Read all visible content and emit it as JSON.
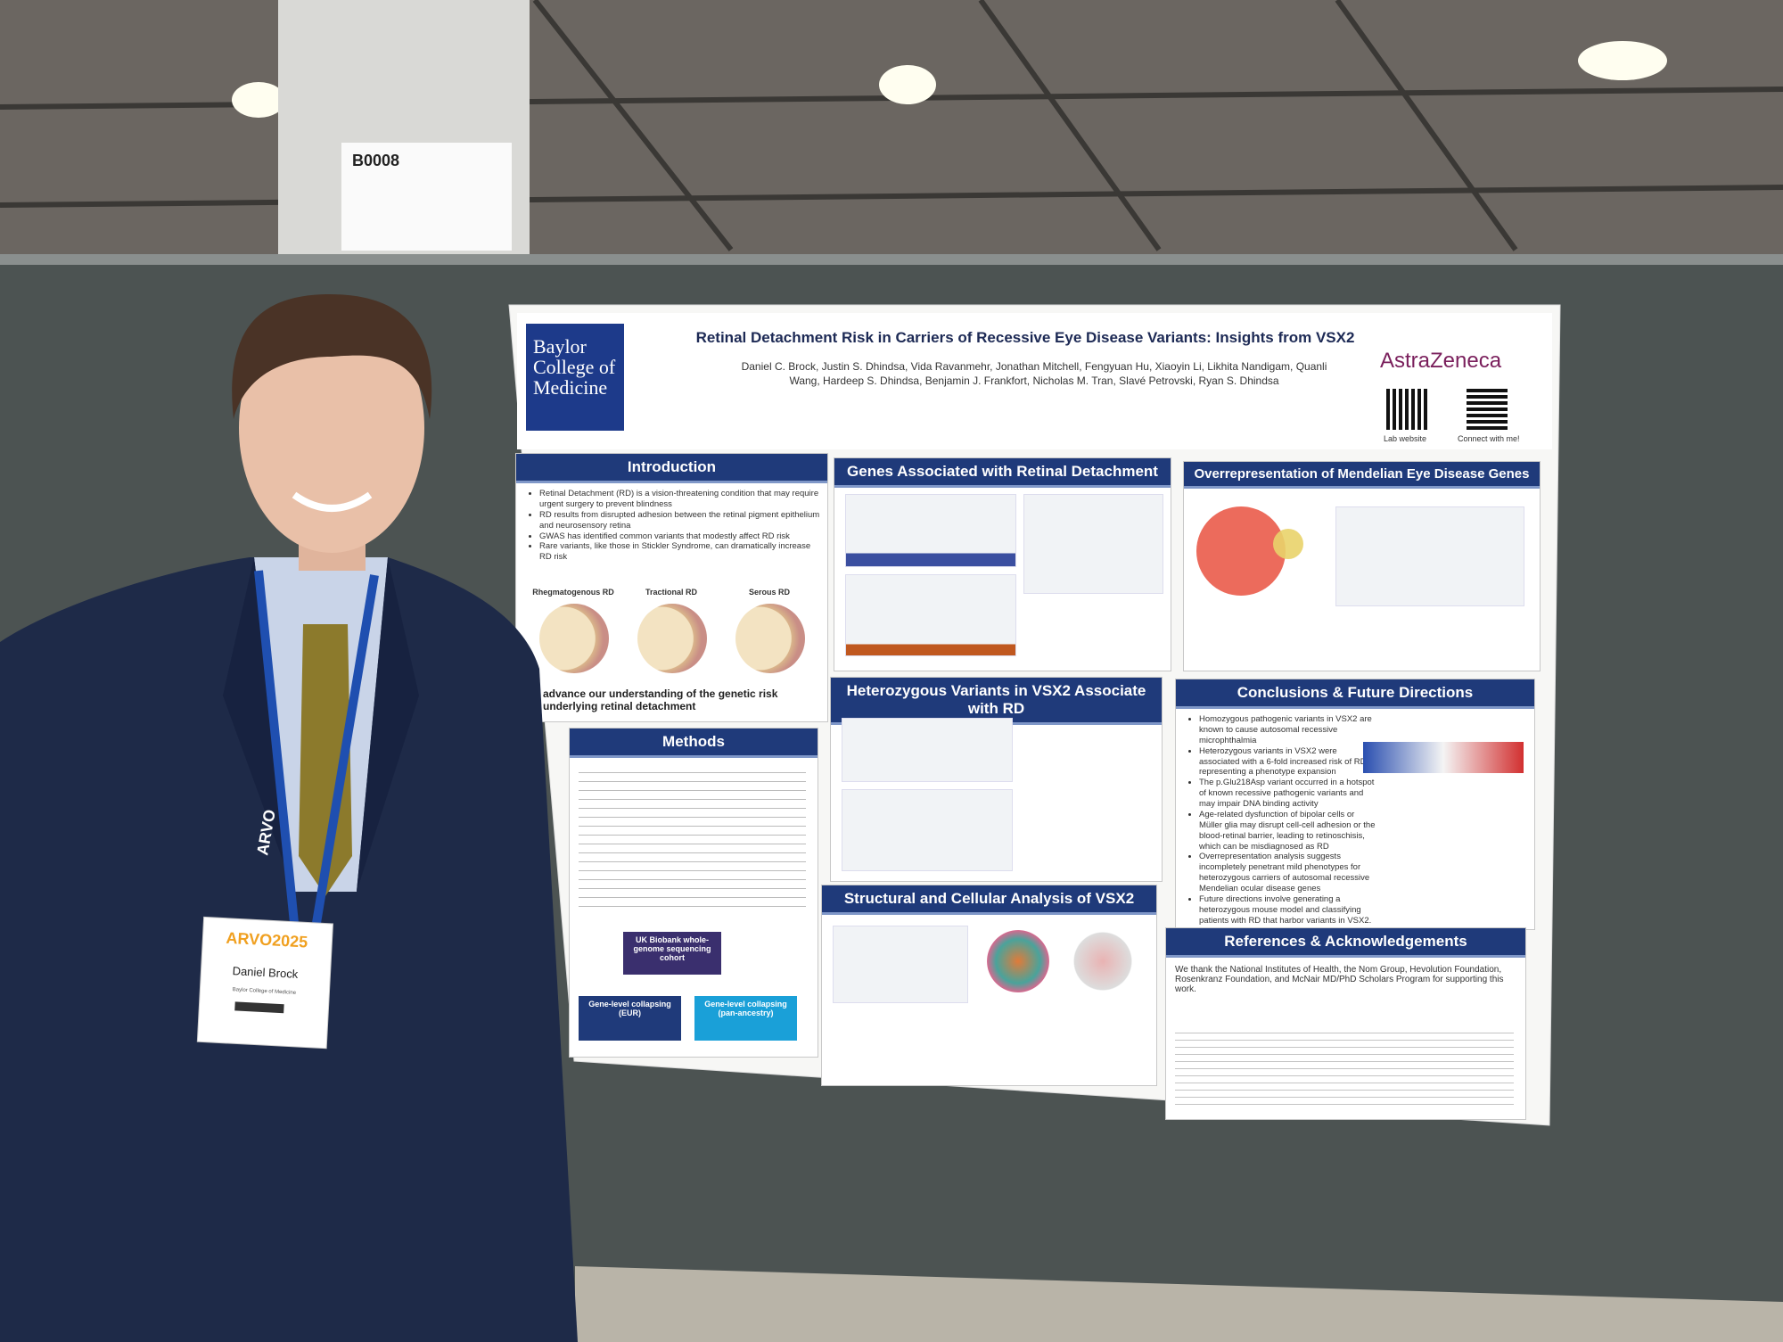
{
  "sign": {
    "code": "B0008"
  },
  "poster": {
    "logo_left": "Baylor College of Medicine",
    "title": "Retinal Detachment Risk in Carriers of Recessive Eye Disease Variants: Insights from VSX2",
    "authors": [
      "Daniel C. Brock, Justin S. Dhindsa, Vida Ravanmehr, Jonathan Mitchell, Fengyuan Hu, Xiaoyin Li, Likhita Nandigam, Quanli",
      "Wang, Hardeep S. Dhindsa, Benjamin J. Frankfort, Nicholas M. Tran, Slavé Petrovski, Ryan S. Dhindsa"
    ],
    "logo_right": "AstraZeneca",
    "qr_labels": [
      "Lab website",
      "Connect with me!"
    ],
    "introduction": {
      "heading": "Introduction",
      "bullets": [
        "Retinal Detachment (RD) is a vision-threatening condition that may require urgent surgery to prevent blindness",
        "RD results from disrupted adhesion between the retinal pigment epithelium and neurosensory retina",
        "GWAS has identified common variants that modestly affect RD risk",
        "Rare variants, like those in Stickler Syndrome, can dramatically increase RD risk"
      ],
      "figure_labels": [
        "Rhegmatogenous RD",
        "Tractional RD",
        "Serous RD"
      ],
      "aim": "advance our understanding of the genetic risk underlying retinal detachment"
    },
    "methods": {
      "heading": "Methods",
      "boxes": [
        "UK Biobank whole-genome sequencing cohort",
        "Gene-level collapsing (EUR)",
        "Gene-level collapsing (pan-ancestry)"
      ]
    },
    "genes": {
      "heading": "Genes Associated with Retinal Detachment"
    },
    "heterozygous": {
      "heading": "Heterozygous Variants in VSX2 Associate with RD"
    },
    "structural": {
      "heading": "Structural and Cellular Analysis of VSX2"
    },
    "overrep": {
      "heading": "Overrepresentation of Mendelian Eye Disease Genes"
    },
    "conclusions": {
      "heading": "Conclusions & Future Directions",
      "bullets": [
        "Homozygous pathogenic variants in VSX2 are known to cause autosomal recessive microphthalmia",
        "Heterozygous variants in VSX2 were associated with a 6-fold increased risk of RD, representing a phenotype expansion",
        "The p.Glu218Asp variant occurred in a hotspot of known recessive pathogenic variants and may impair DNA binding activity",
        "Age-related dysfunction of bipolar cells or Müller glia may disrupt cell-cell adhesion or the blood-retinal barrier, leading to retinoschisis, which can be misdiagnosed as RD",
        "Overrepresentation analysis suggests incompletely penetrant mild phenotypes for heterozygous carriers of autosomal recessive Mendelian ocular disease genes",
        "Future directions involve generating a heterozygous mouse model and classifying patients with RD that harbor variants in VSX2."
      ]
    },
    "references": {
      "heading": "References & Acknowledgements",
      "text": "We thank the National Institutes of Health, the Nom Group, Hevolution Foundation, Rosenkranz Foundation, and McNair MD/PhD Scholars Program for supporting this work."
    }
  },
  "lanyard": "ARVO",
  "badge": {
    "event": "ARVO2025",
    "name": "Daniel Brock",
    "org": "Baylor College of Medicine"
  }
}
